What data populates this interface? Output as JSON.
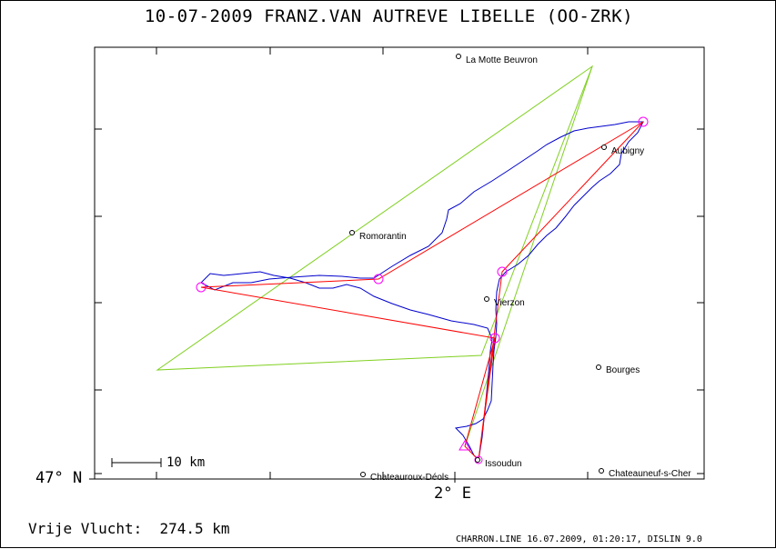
{
  "title": "10-07-2009    FRANZ.VAN AUTREVE    LIBELLE (OO-ZRK)",
  "axes": {
    "lat_label": "47° N",
    "lon_label": "2° E"
  },
  "towns": [
    {
      "name": "La Motte Beuvron"
    },
    {
      "name": "Aubigny"
    },
    {
      "name": "Romorantin"
    },
    {
      "name": "Vierzon"
    },
    {
      "name": "Bourges"
    },
    {
      "name": "Issoudun"
    },
    {
      "name": "Chateauroux-Déols"
    },
    {
      "name": "Chateauneuf-s-Cher"
    }
  ],
  "scale_bar": {
    "label": "10 km"
  },
  "distance_text": "Vrije Vlucht:  274.5 km",
  "footer": "CHARRON.LINE 16.07.2009, 01:20:17, DISLIN 9.0",
  "colors": {
    "track": "#0000cc",
    "task": "#ff0000",
    "triangle": "#80d020",
    "turnpoint": "#ff00ff"
  }
}
